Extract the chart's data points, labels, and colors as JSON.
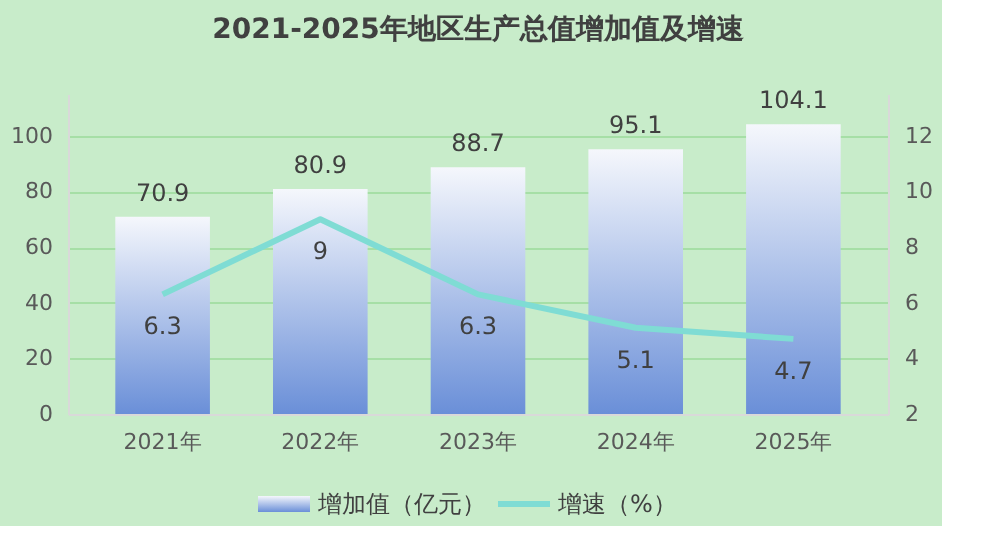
{
  "chart_data": {
    "type": "bar",
    "title": "2021-2025年地区生产总值增加值及增速",
    "categories": [
      "2021年",
      "2022年",
      "2023年",
      "2024年",
      "2025年"
    ],
    "series": [
      {
        "name": "增加值（亿元）",
        "color": "#6a8fd8",
        "values": [
          70.9,
          80.9,
          88.7,
          95.1,
          104.1
        ]
      },
      {
        "name": "增速（%）",
        "type": "line",
        "axis": "y2",
        "color": "#7fdcd4",
        "values": [
          6.3,
          9,
          6.3,
          5.1,
          4.7
        ]
      }
    ],
    "ylim": [
      0,
      115
    ],
    "yticks": [
      0,
      20,
      40,
      60,
      80,
      100
    ],
    "y2lim": [
      2,
      13.5
    ],
    "y2ticks": [
      2,
      4,
      6,
      8,
      10,
      12
    ],
    "data_labels": true,
    "grid": "y",
    "legend": "bottom",
    "marker": "none",
    "line_style": "solid"
  }
}
